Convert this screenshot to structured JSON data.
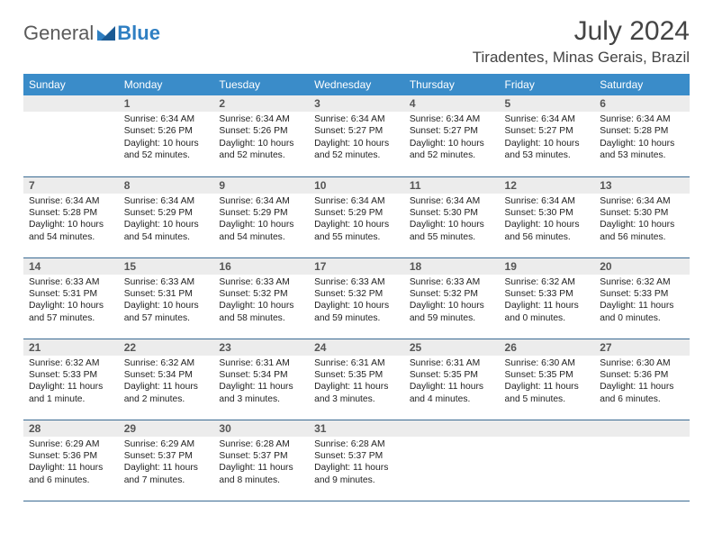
{
  "logo": {
    "general": "General",
    "blue": "Blue"
  },
  "title": "July 2024",
  "location": "Tiradentes, Minas Gerais, Brazil",
  "colors": {
    "header_bg": "#3a8cc9",
    "daynum_bg": "#ececec",
    "border": "#3a6a92",
    "logo_gray": "#5a5a5a",
    "logo_blue": "#2f7fc2"
  },
  "weekdays": [
    "Sunday",
    "Monday",
    "Tuesday",
    "Wednesday",
    "Thursday",
    "Friday",
    "Saturday"
  ],
  "weeks": [
    [
      {
        "day": ""
      },
      {
        "day": "1",
        "sunrise": "Sunrise: 6:34 AM",
        "sunset": "Sunset: 5:26 PM",
        "daylight": "Daylight: 10 hours and 52 minutes."
      },
      {
        "day": "2",
        "sunrise": "Sunrise: 6:34 AM",
        "sunset": "Sunset: 5:26 PM",
        "daylight": "Daylight: 10 hours and 52 minutes."
      },
      {
        "day": "3",
        "sunrise": "Sunrise: 6:34 AM",
        "sunset": "Sunset: 5:27 PM",
        "daylight": "Daylight: 10 hours and 52 minutes."
      },
      {
        "day": "4",
        "sunrise": "Sunrise: 6:34 AM",
        "sunset": "Sunset: 5:27 PM",
        "daylight": "Daylight: 10 hours and 52 minutes."
      },
      {
        "day": "5",
        "sunrise": "Sunrise: 6:34 AM",
        "sunset": "Sunset: 5:27 PM",
        "daylight": "Daylight: 10 hours and 53 minutes."
      },
      {
        "day": "6",
        "sunrise": "Sunrise: 6:34 AM",
        "sunset": "Sunset: 5:28 PM",
        "daylight": "Daylight: 10 hours and 53 minutes."
      }
    ],
    [
      {
        "day": "7",
        "sunrise": "Sunrise: 6:34 AM",
        "sunset": "Sunset: 5:28 PM",
        "daylight": "Daylight: 10 hours and 54 minutes."
      },
      {
        "day": "8",
        "sunrise": "Sunrise: 6:34 AM",
        "sunset": "Sunset: 5:29 PM",
        "daylight": "Daylight: 10 hours and 54 minutes."
      },
      {
        "day": "9",
        "sunrise": "Sunrise: 6:34 AM",
        "sunset": "Sunset: 5:29 PM",
        "daylight": "Daylight: 10 hours and 54 minutes."
      },
      {
        "day": "10",
        "sunrise": "Sunrise: 6:34 AM",
        "sunset": "Sunset: 5:29 PM",
        "daylight": "Daylight: 10 hours and 55 minutes."
      },
      {
        "day": "11",
        "sunrise": "Sunrise: 6:34 AM",
        "sunset": "Sunset: 5:30 PM",
        "daylight": "Daylight: 10 hours and 55 minutes."
      },
      {
        "day": "12",
        "sunrise": "Sunrise: 6:34 AM",
        "sunset": "Sunset: 5:30 PM",
        "daylight": "Daylight: 10 hours and 56 minutes."
      },
      {
        "day": "13",
        "sunrise": "Sunrise: 6:34 AM",
        "sunset": "Sunset: 5:30 PM",
        "daylight": "Daylight: 10 hours and 56 minutes."
      }
    ],
    [
      {
        "day": "14",
        "sunrise": "Sunrise: 6:33 AM",
        "sunset": "Sunset: 5:31 PM",
        "daylight": "Daylight: 10 hours and 57 minutes."
      },
      {
        "day": "15",
        "sunrise": "Sunrise: 6:33 AM",
        "sunset": "Sunset: 5:31 PM",
        "daylight": "Daylight: 10 hours and 57 minutes."
      },
      {
        "day": "16",
        "sunrise": "Sunrise: 6:33 AM",
        "sunset": "Sunset: 5:32 PM",
        "daylight": "Daylight: 10 hours and 58 minutes."
      },
      {
        "day": "17",
        "sunrise": "Sunrise: 6:33 AM",
        "sunset": "Sunset: 5:32 PM",
        "daylight": "Daylight: 10 hours and 59 minutes."
      },
      {
        "day": "18",
        "sunrise": "Sunrise: 6:33 AM",
        "sunset": "Sunset: 5:32 PM",
        "daylight": "Daylight: 10 hours and 59 minutes."
      },
      {
        "day": "19",
        "sunrise": "Sunrise: 6:32 AM",
        "sunset": "Sunset: 5:33 PM",
        "daylight": "Daylight: 11 hours and 0 minutes."
      },
      {
        "day": "20",
        "sunrise": "Sunrise: 6:32 AM",
        "sunset": "Sunset: 5:33 PM",
        "daylight": "Daylight: 11 hours and 0 minutes."
      }
    ],
    [
      {
        "day": "21",
        "sunrise": "Sunrise: 6:32 AM",
        "sunset": "Sunset: 5:33 PM",
        "daylight": "Daylight: 11 hours and 1 minute."
      },
      {
        "day": "22",
        "sunrise": "Sunrise: 6:32 AM",
        "sunset": "Sunset: 5:34 PM",
        "daylight": "Daylight: 11 hours and 2 minutes."
      },
      {
        "day": "23",
        "sunrise": "Sunrise: 6:31 AM",
        "sunset": "Sunset: 5:34 PM",
        "daylight": "Daylight: 11 hours and 3 minutes."
      },
      {
        "day": "24",
        "sunrise": "Sunrise: 6:31 AM",
        "sunset": "Sunset: 5:35 PM",
        "daylight": "Daylight: 11 hours and 3 minutes."
      },
      {
        "day": "25",
        "sunrise": "Sunrise: 6:31 AM",
        "sunset": "Sunset: 5:35 PM",
        "daylight": "Daylight: 11 hours and 4 minutes."
      },
      {
        "day": "26",
        "sunrise": "Sunrise: 6:30 AM",
        "sunset": "Sunset: 5:35 PM",
        "daylight": "Daylight: 11 hours and 5 minutes."
      },
      {
        "day": "27",
        "sunrise": "Sunrise: 6:30 AM",
        "sunset": "Sunset: 5:36 PM",
        "daylight": "Daylight: 11 hours and 6 minutes."
      }
    ],
    [
      {
        "day": "28",
        "sunrise": "Sunrise: 6:29 AM",
        "sunset": "Sunset: 5:36 PM",
        "daylight": "Daylight: 11 hours and 6 minutes."
      },
      {
        "day": "29",
        "sunrise": "Sunrise: 6:29 AM",
        "sunset": "Sunset: 5:37 PM",
        "daylight": "Daylight: 11 hours and 7 minutes."
      },
      {
        "day": "30",
        "sunrise": "Sunrise: 6:28 AM",
        "sunset": "Sunset: 5:37 PM",
        "daylight": "Daylight: 11 hours and 8 minutes."
      },
      {
        "day": "31",
        "sunrise": "Sunrise: 6:28 AM",
        "sunset": "Sunset: 5:37 PM",
        "daylight": "Daylight: 11 hours and 9 minutes."
      },
      {
        "day": ""
      },
      {
        "day": ""
      },
      {
        "day": ""
      }
    ]
  ]
}
